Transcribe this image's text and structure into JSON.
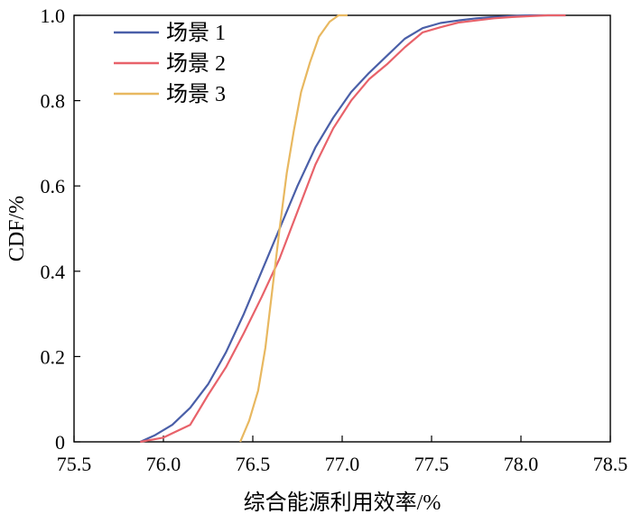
{
  "chart_data": {
    "type": "line",
    "xlabel": "综合能源利用效率/%",
    "ylabel": "CDF/%",
    "xlim": [
      75.5,
      78.5
    ],
    "ylim": [
      0,
      1.0
    ],
    "x_ticks": [
      "75.5",
      "76.0",
      "76.5",
      "77.0",
      "77.5",
      "78.0",
      "78.5"
    ],
    "y_ticks": [
      "0",
      "0.2",
      "0.4",
      "0.6",
      "0.8",
      "1.0"
    ],
    "grid": false,
    "legend_position": "top-left",
    "series": [
      {
        "name": "场景 1",
        "color": "#4a5fa8",
        "x": [
          75.87,
          75.95,
          76.05,
          76.15,
          76.25,
          76.35,
          76.45,
          76.55,
          76.65,
          76.75,
          76.85,
          76.95,
          77.05,
          77.15,
          77.25,
          77.35,
          77.45,
          77.55,
          77.65,
          77.75,
          77.85,
          77.95,
          78.05,
          78.15,
          78.25
        ],
        "y": [
          0.0,
          0.015,
          0.04,
          0.08,
          0.135,
          0.21,
          0.3,
          0.4,
          0.5,
          0.6,
          0.69,
          0.76,
          0.82,
          0.865,
          0.905,
          0.945,
          0.97,
          0.982,
          0.988,
          0.993,
          0.996,
          0.998,
          1.0,
          1.0,
          1.0
        ]
      },
      {
        "name": "场景 2",
        "color": "#e8626a",
        "x": [
          75.87,
          76.0,
          76.05,
          76.15,
          76.25,
          76.35,
          76.45,
          76.55,
          76.65,
          76.75,
          76.85,
          76.95,
          77.05,
          77.15,
          77.25,
          77.35,
          77.45,
          77.55,
          77.65,
          77.75,
          77.85,
          77.95,
          78.05,
          78.15,
          78.25
        ],
        "y": [
          0.0,
          0.01,
          0.02,
          0.04,
          0.11,
          0.175,
          0.255,
          0.34,
          0.43,
          0.54,
          0.65,
          0.735,
          0.8,
          0.85,
          0.885,
          0.925,
          0.96,
          0.972,
          0.983,
          0.988,
          0.993,
          0.996,
          0.998,
          1.0,
          1.0
        ]
      },
      {
        "name": "场景 3",
        "color": "#e8b860",
        "x": [
          76.43,
          76.48,
          76.53,
          76.57,
          76.61,
          76.65,
          76.69,
          76.73,
          76.77,
          76.82,
          76.87,
          76.93,
          76.98,
          77.03
        ],
        "y": [
          0.0,
          0.05,
          0.12,
          0.22,
          0.36,
          0.5,
          0.63,
          0.73,
          0.82,
          0.89,
          0.95,
          0.985,
          1.0,
          1.0
        ]
      }
    ]
  }
}
